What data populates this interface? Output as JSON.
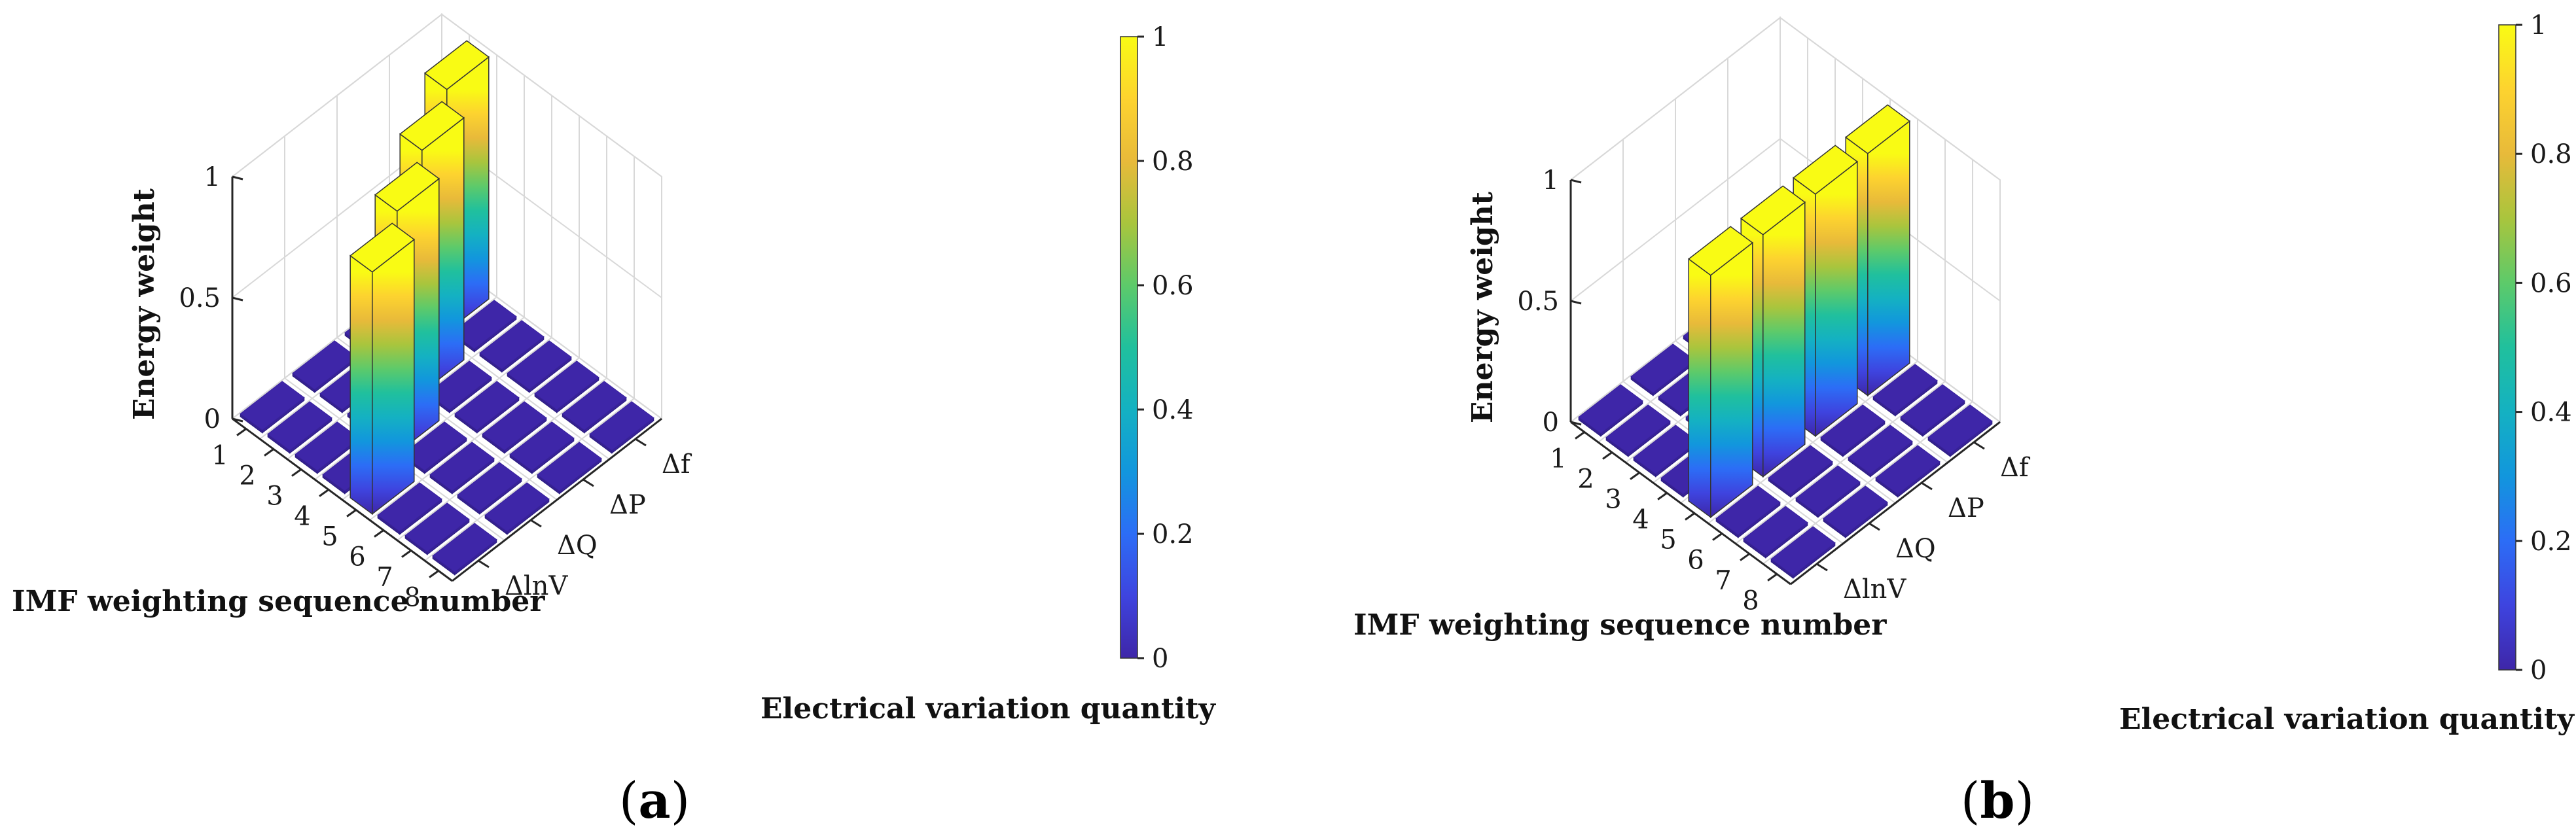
{
  "chart_data": [
    {
      "type": "bar3d",
      "panel_label": "a",
      "zlabel": "Energy weight",
      "xlabel": "IMF weighting sequence number",
      "ylabel": "Electrical variation quantity",
      "x_ticks": [
        "1",
        "2",
        "3",
        "4",
        "5",
        "6",
        "7",
        "8"
      ],
      "y_ticks": [
        "ΔlnV",
        "ΔQ",
        "ΔP",
        "Δf"
      ],
      "z_ticks": [
        "0",
        "0.5",
        "1"
      ],
      "zlim": [
        0,
        1
      ],
      "colorbar_ticks": [
        "0",
        "0.2",
        "0.4",
        "0.6",
        "0.8",
        "1"
      ],
      "series": [
        {
          "name": "ΔlnV",
          "values": [
            0,
            0,
            0,
            0,
            1.0,
            0,
            0,
            0
          ]
        },
        {
          "name": "ΔQ",
          "values": [
            0,
            0,
            0,
            1.0,
            0,
            0,
            0,
            0
          ]
        },
        {
          "name": "ΔP",
          "values": [
            0,
            0,
            1.0,
            0,
            0,
            0,
            0,
            0
          ]
        },
        {
          "name": "Δf",
          "values": [
            0,
            1.0,
            0,
            0,
            0,
            0,
            0,
            0
          ]
        }
      ]
    },
    {
      "type": "bar3d",
      "panel_label": "b",
      "zlabel": "Energy weight",
      "xlabel": "IMF weighting sequence number",
      "ylabel": "Electrical variation quantity",
      "x_ticks": [
        "1",
        "2",
        "3",
        "4",
        "5",
        "6",
        "7",
        "8"
      ],
      "y_ticks": [
        "ΔlnV",
        "ΔQ",
        "ΔP",
        "Δf"
      ],
      "z_ticks": [
        "0",
        "0.5",
        "1"
      ],
      "zlim": [
        0,
        1
      ],
      "colorbar_ticks": [
        "0",
        "0.2",
        "0.4",
        "0.6",
        "0.8",
        "1"
      ],
      "series": [
        {
          "name": "ΔlnV",
          "values": [
            0,
            0,
            0,
            0,
            1.0,
            0,
            0,
            0
          ]
        },
        {
          "name": "ΔQ",
          "values": [
            0,
            0,
            0,
            0,
            1.0,
            0,
            0,
            0
          ]
        },
        {
          "name": "ΔP",
          "values": [
            0,
            0,
            0,
            0,
            1.0,
            0,
            0,
            0
          ]
        },
        {
          "name": "Δf",
          "values": [
            0,
            0,
            0,
            0,
            1.0,
            0,
            0,
            0
          ]
        }
      ]
    }
  ],
  "colors": {
    "parula": [
      "#3E26A8",
      "#3E44DF",
      "#2C6DF6",
      "#1296DD",
      "#14B1C2",
      "#20C09D",
      "#5DCA6A",
      "#A9C53D",
      "#E8BA3A",
      "#FDD32F",
      "#F9FB14"
    ],
    "grid": "#d8d8d8",
    "axis": "#262626"
  }
}
